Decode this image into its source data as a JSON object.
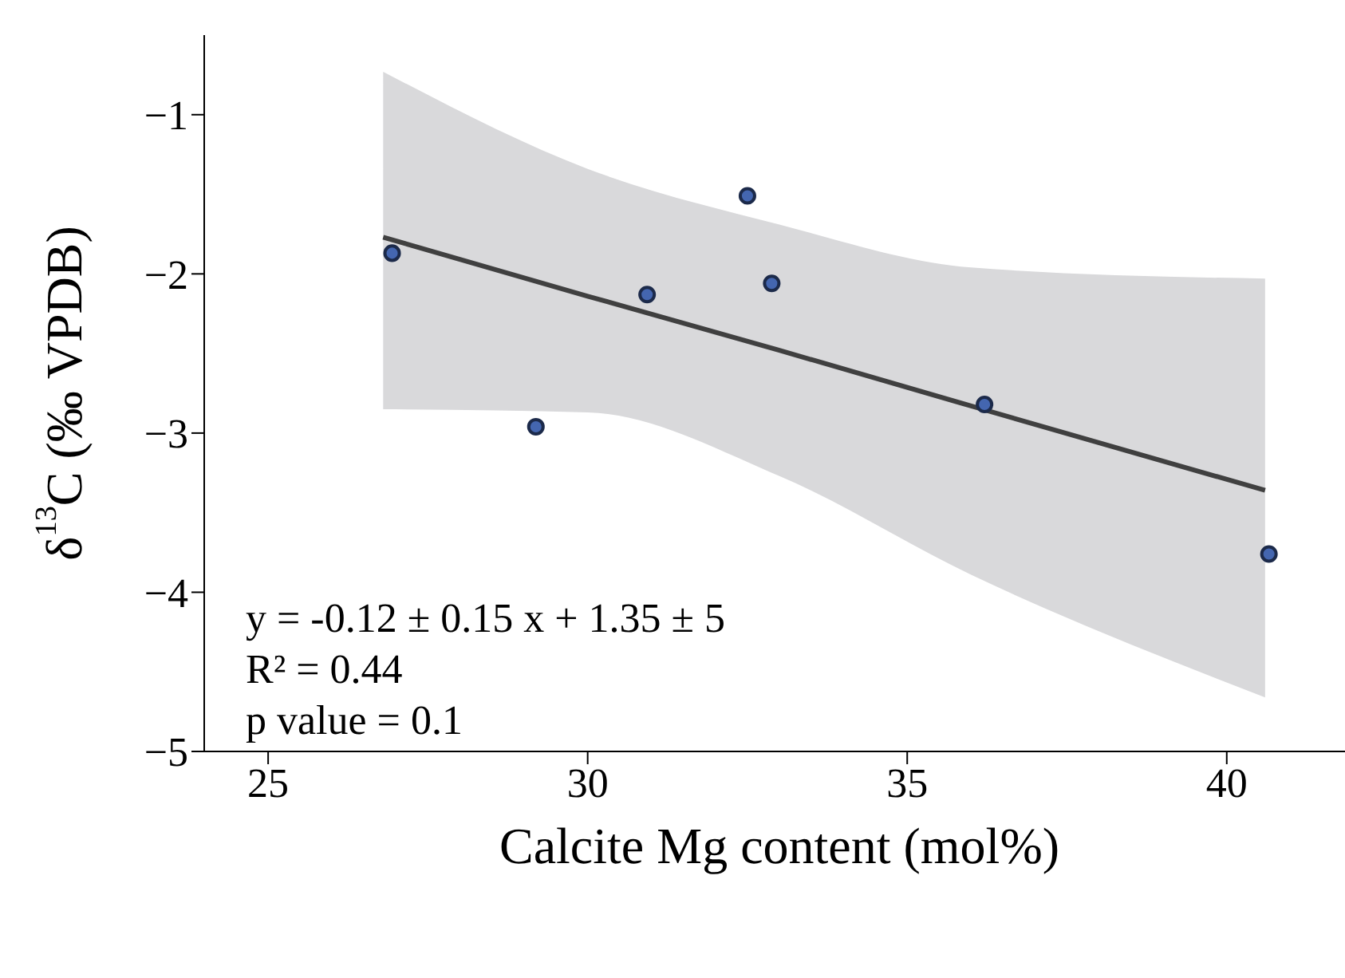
{
  "chart_data": {
    "type": "scatter",
    "xlabel": "Calcite Mg content (mol%)",
    "ylabel": "δ$^{13}$C (‰ VPDB)",
    "xlim": [
      24,
      42
    ],
    "xticks": [
      25,
      30,
      35,
      40
    ],
    "ylim": [
      -5,
      -0.5
    ],
    "yticks": [
      -5,
      -4,
      -3,
      -2,
      -1
    ],
    "series": [
      {
        "type": "line",
        "color": "#404040",
        "x": [
          26.8,
          30,
          33,
          36,
          40.6
        ],
        "values": [
          -1.77,
          -2.14,
          -2.48,
          -2.83,
          -3.36
        ],
        "lower": [
          -2.85,
          -2.87,
          -3.27,
          -3.89,
          -4.66
        ],
        "upper": [
          -0.73,
          -1.34,
          -1.69,
          -1.96,
          -2.03
        ]
      },
      {
        "color": "#4466b0",
        "x": [
          26.94,
          29.19,
          30.93,
          32.5,
          32.88,
          36.21,
          40.66
        ],
        "values": [
          -1.87,
          -2.96,
          -2.13,
          -1.51,
          -2.06,
          -2.82,
          -3.76
        ]
      }
    ],
    "annotations": [
      "y = -0.12 ± 0.15 x + 1.35 ± 5",
      "R² = 0.44",
      "p value = 0.1"
    ]
  }
}
